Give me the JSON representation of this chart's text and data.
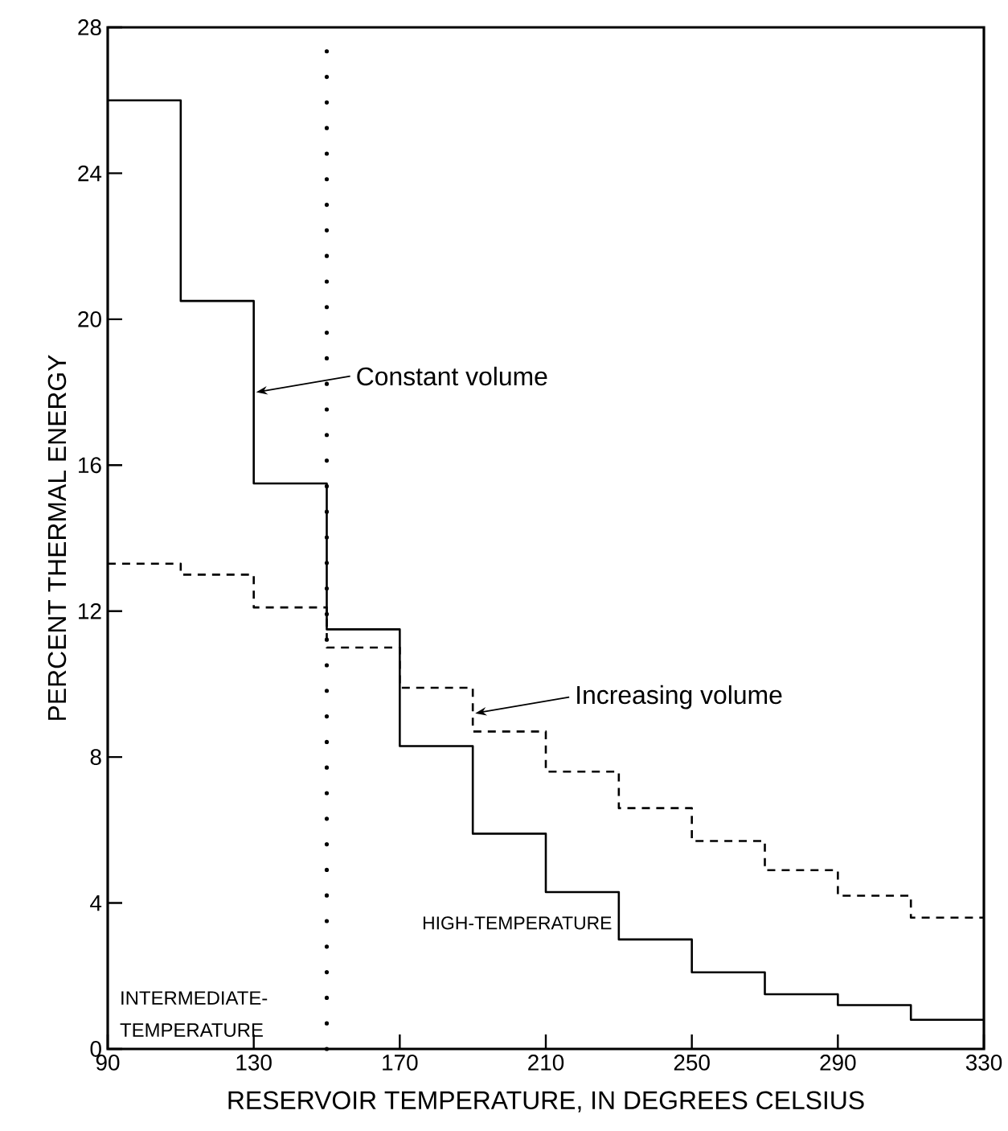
{
  "chart_data": {
    "type": "histogram",
    "xlabel": "RESERVOIR TEMPERATURE, IN DEGREES CELSIUS",
    "ylabel": "PERCENT THERMAL ENERGY",
    "bins": [
      90,
      110,
      130,
      150,
      170,
      190,
      210,
      230,
      250,
      270,
      290,
      310,
      330
    ],
    "series": [
      {
        "color": "#000000",
        "line_style": "solid",
        "values": [
          26,
          20.5,
          15.5,
          11.5,
          8.3,
          5.9,
          4.3,
          3.0,
          2.1,
          1.5,
          1.2,
          0.8
        ]
      },
      {
        "color": "#000000",
        "line_style": "dashed",
        "values": [
          13.3,
          13.0,
          12.1,
          11.0,
          9.9,
          8.7,
          7.6,
          6.6,
          5.7,
          4.9,
          4.2,
          3.6
        ]
      }
    ],
    "xlim": [
      90,
      330
    ],
    "xticks": [
      90,
      130,
      170,
      210,
      250,
      290,
      330
    ],
    "ylim": [
      0,
      28
    ],
    "yticks": [
      0,
      4,
      8,
      12,
      16,
      20,
      24,
      28
    ],
    "ref_lines": [
      {
        "axis": "x",
        "value": 150,
        "line_style": "dotted",
        "color": "#000000"
      }
    ],
    "annotations": [
      {
        "text": "Constant volume",
        "x": 130,
        "y": 18
      },
      {
        "text": "Increasing volume",
        "x": 190,
        "y": 9.2
      },
      "INTERMEDIATE-TEMPERATURE",
      "HIGH-TEMPERATURE"
    ],
    "marker": "none"
  }
}
